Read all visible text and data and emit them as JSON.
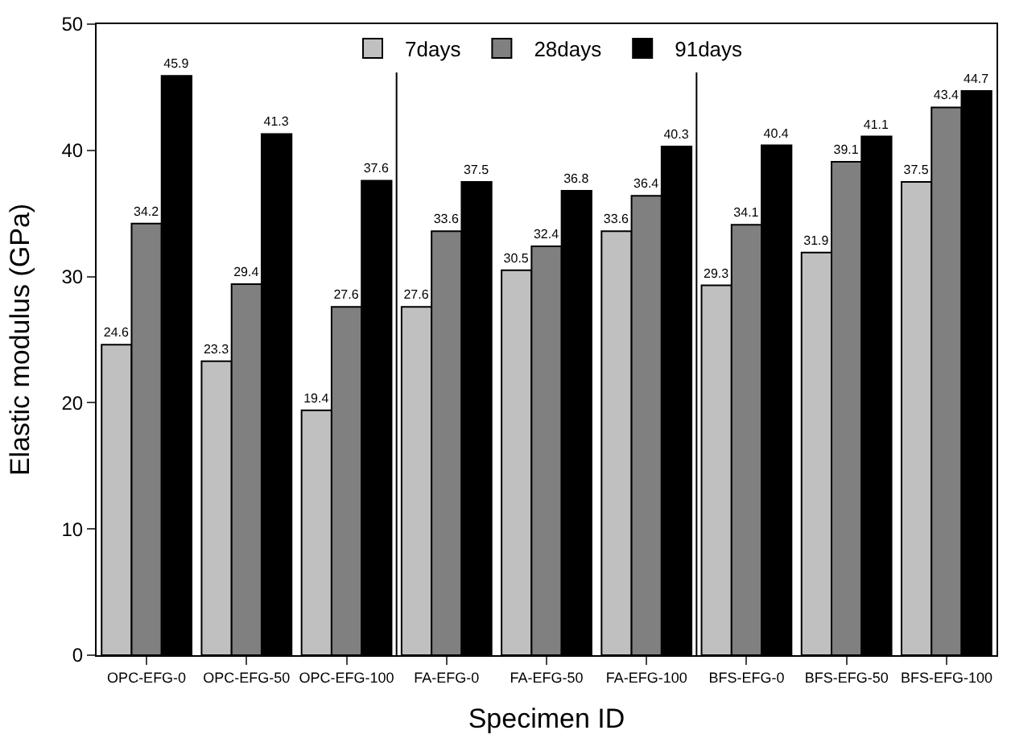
{
  "chart_data": {
    "type": "bar",
    "xlabel": "Specimen ID",
    "ylabel": "Elastic modulus (GPa)",
    "categories": [
      "OPC-EFG-0",
      "OPC-EFG-50",
      "OPC-EFG-100",
      "FA-EFG-0",
      "FA-EFG-50",
      "FA-EFG-100",
      "BFS-EFG-0",
      "BFS-EFG-50",
      "BFS-EFG-100"
    ],
    "series": [
      {
        "name": "7days",
        "color": "#c0c0c0",
        "values": [
          24.6,
          23.3,
          19.4,
          27.6,
          30.5,
          33.6,
          29.3,
          31.9,
          37.5
        ]
      },
      {
        "name": "28days",
        "color": "#808080",
        "values": [
          34.2,
          29.4,
          27.6,
          33.6,
          32.4,
          36.4,
          34.1,
          39.1,
          43.4
        ]
      },
      {
        "name": "91days",
        "color": "#000000",
        "values": [
          45.9,
          41.3,
          37.6,
          37.5,
          36.8,
          40.3,
          40.4,
          41.1,
          44.7
        ]
      }
    ],
    "ylim": [
      0,
      50
    ],
    "yticks": [
      0,
      10,
      20,
      30,
      40,
      50
    ],
    "data_labels": true,
    "legend": "top",
    "grid": false
  }
}
